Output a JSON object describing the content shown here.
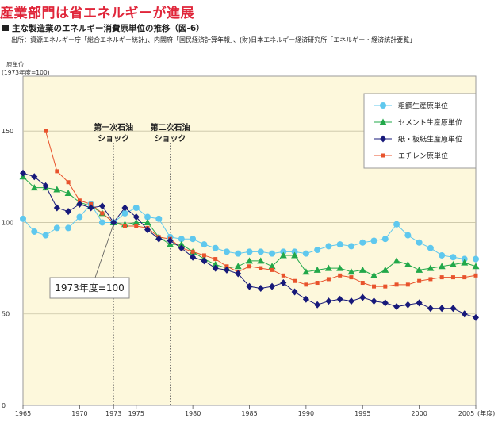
{
  "header": {
    "title": "産業部門は省エネルギーが進展",
    "subtitle": "主な製造業のエネルギー消費原単位の推移（図-6）",
    "source": "出所：資源エネルギー庁「総合エネルギー統計」、内閣府「国民経済計算年報」、(財)日本エネルギー経済研究所「エネルギー・経済統計要覧」"
  },
  "chart_data": {
    "type": "line",
    "title": "",
    "ylabel": "原単位",
    "ylabel_sub": "(1973年度=100)",
    "xlabel": "(年度)",
    "ylim": [
      0,
      180
    ],
    "xlim": [
      1965,
      2005
    ],
    "y_ticks": [
      "0",
      "50",
      "100",
      "150"
    ],
    "x_ticks": [
      {
        "value": 1965,
        "label": "1965"
      },
      {
        "value": 1970,
        "label": "1970"
      },
      {
        "value": 1973,
        "label": "1973"
      },
      {
        "value": 1975,
        "label": "1975"
      },
      {
        "value": 1980,
        "label": "1980"
      },
      {
        "value": 1985,
        "label": "1985"
      },
      {
        "value": 1990,
        "label": "1990"
      },
      {
        "value": 1995,
        "label": "1995"
      },
      {
        "value": 2000,
        "label": "2000"
      },
      {
        "value": 2005,
        "label": "2005"
      }
    ],
    "x_axis_unit": "(年度)",
    "grid": "horizontal",
    "legend_position": "top-right",
    "annotations": [
      {
        "text_line1": "第一次石油",
        "text_line2": "ショック",
        "x": 1973
      },
      {
        "text_line1": "第二次石油",
        "text_line2": "ショック",
        "x": 1978
      }
    ],
    "reference_label": "1973年度=100",
    "colors": {
      "plot_bg": "#fdf8dc",
      "cement": "#22a84a",
      "steel": "#5fc8ee",
      "paper": "#17197a",
      "ethylene": "#e8532c"
    },
    "series": [
      {
        "name": "粗鋼生産原単位",
        "color": "#5fc8ee",
        "marker": "circle",
        "x": [
          1965,
          1966,
          1967,
          1968,
          1969,
          1970,
          1971,
          1972,
          1973,
          1974,
          1975,
          1976,
          1977,
          1978,
          1979,
          1980,
          1981,
          1982,
          1983,
          1984,
          1985,
          1986,
          1987,
          1988,
          1989,
          1990,
          1991,
          1992,
          1993,
          1994,
          1995,
          1996,
          1997,
          1998,
          1999,
          2000,
          2001,
          2002,
          2003,
          2004,
          2005
        ],
        "values": [
          102,
          95,
          93,
          97,
          97,
          103,
          110,
          100,
          100,
          105,
          108,
          103,
          102,
          92,
          91,
          91,
          88,
          86,
          84,
          83,
          84,
          84,
          83,
          84,
          84,
          83,
          85,
          87,
          88,
          87,
          89,
          90,
          91,
          99,
          93,
          89,
          86,
          82,
          81,
          80,
          80
        ]
      },
      {
        "name": "セメント生産原単位",
        "color": "#22a84a",
        "marker": "triangle",
        "x": [
          1965,
          1966,
          1967,
          1968,
          1969,
          1970,
          1971,
          1972,
          1973,
          1974,
          1975,
          1976,
          1977,
          1978,
          1979,
          1980,
          1981,
          1982,
          1983,
          1984,
          1985,
          1986,
          1987,
          1988,
          1989,
          1990,
          1991,
          1992,
          1993,
          1994,
          1995,
          1996,
          1997,
          1998,
          1999,
          2000,
          2001,
          2002,
          2003,
          2004,
          2005
        ],
        "values": [
          125,
          119,
          119,
          118,
          116,
          111,
          109,
          105,
          100,
          99,
          100,
          100,
          92,
          88,
          88,
          84,
          80,
          77,
          75,
          76,
          79,
          79,
          76,
          82,
          82,
          73,
          74,
          75,
          75,
          73,
          74,
          71,
          74,
          79,
          77,
          74,
          75,
          76,
          77,
          78,
          76
        ]
      },
      {
        "name": "紙・板紙生産原単位",
        "color": "#17197a",
        "marker": "diamond",
        "x": [
          1965,
          1966,
          1967,
          1968,
          1969,
          1970,
          1971,
          1972,
          1973,
          1974,
          1975,
          1976,
          1977,
          1978,
          1979,
          1980,
          1981,
          1982,
          1983,
          1984,
          1985,
          1986,
          1987,
          1988,
          1989,
          1990,
          1991,
          1992,
          1993,
          1994,
          1995,
          1996,
          1997,
          1998,
          1999,
          2000,
          2001,
          2002,
          2003,
          2004,
          2005
        ],
        "values": [
          127,
          125,
          120,
          108,
          106,
          110,
          108,
          109,
          100,
          108,
          103,
          96,
          91,
          90,
          86,
          81,
          79,
          75,
          74,
          72,
          65,
          64,
          65,
          67,
          62,
          58,
          55,
          57,
          58,
          57,
          59,
          57,
          56,
          54,
          55,
          56,
          53,
          53,
          53,
          50,
          48
        ]
      },
      {
        "name": "エチレン原単位",
        "color": "#e8532c",
        "marker": "square",
        "x": [
          1967,
          1968,
          1969,
          1970,
          1971,
          1972,
          1973,
          1974,
          1975,
          1976,
          1977,
          1978,
          1979,
          1980,
          1981,
          1982,
          1983,
          1984,
          1985,
          1986,
          1987,
          1988,
          1989,
          1990,
          1991,
          1992,
          1993,
          1994,
          1995,
          1996,
          1997,
          1998,
          1999,
          2000,
          2001,
          2002,
          2003,
          2004,
          2005
        ],
        "values": [
          150,
          128,
          122,
          112,
          110,
          105,
          100,
          98,
          98,
          97,
          92,
          91,
          86,
          84,
          82,
          80,
          76,
          73,
          76,
          75,
          74,
          71,
          68,
          66,
          67,
          69,
          71,
          70,
          67,
          65,
          65,
          66,
          66,
          68,
          69,
          70,
          70,
          70,
          71
        ]
      }
    ]
  }
}
